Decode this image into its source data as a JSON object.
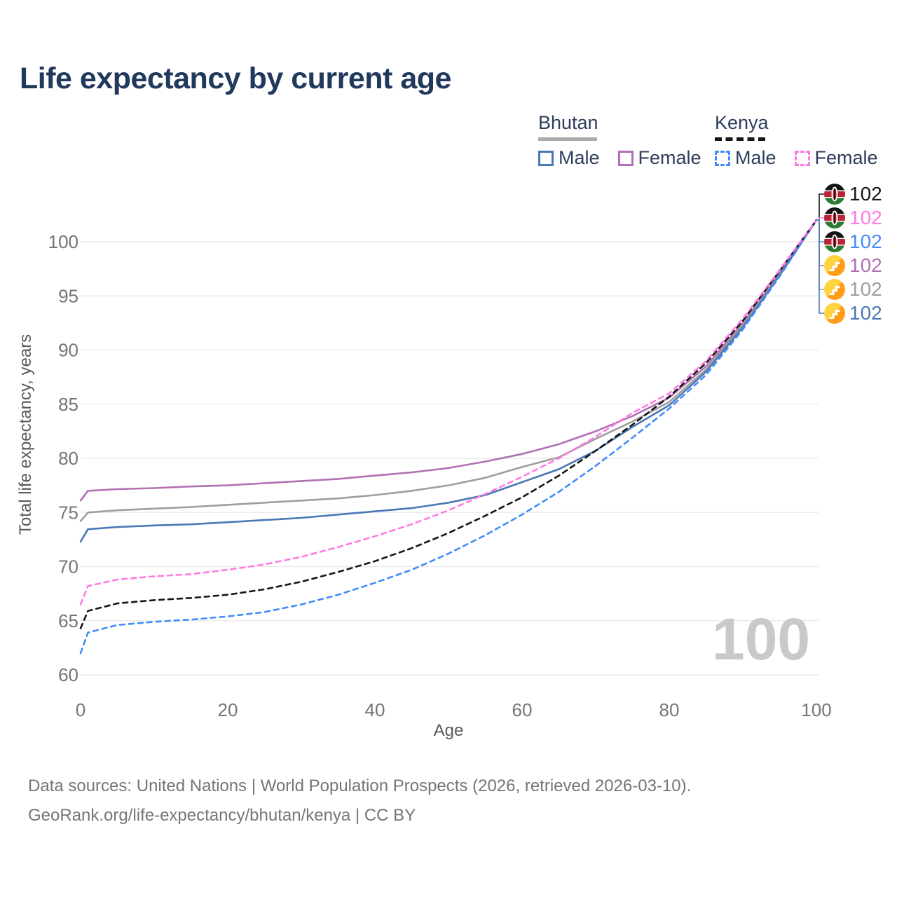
{
  "header": {
    "title": "Life expectancy by current age"
  },
  "legend": {
    "groups": [
      {
        "label": "Bhutan",
        "line_style": "solid",
        "underline_color": "#ababab",
        "items": [
          {
            "label": "Male",
            "series": "bhutan_male"
          },
          {
            "label": "Female",
            "series": "bhutan_female"
          }
        ]
      },
      {
        "label": "Kenya",
        "line_style": "dashed",
        "underline_color": "#161616",
        "items": [
          {
            "label": "Male",
            "series": "kenya_male"
          },
          {
            "label": "Female",
            "series": "kenya_female"
          }
        ]
      }
    ]
  },
  "chart_data": {
    "type": "line",
    "title": "Life expectancy by current age",
    "xlabel": "Age",
    "ylabel": "Total life expectancy, years",
    "xlim": [
      0,
      100
    ],
    "ylim": [
      60,
      103
    ],
    "xticks": [
      0,
      20,
      40,
      60,
      80,
      100
    ],
    "yticks": [
      60,
      65,
      70,
      75,
      80,
      85,
      90,
      95,
      100
    ],
    "grid": "horizontal-only",
    "legend_position": "top-right",
    "watermark": "100",
    "x": [
      0,
      1,
      5,
      10,
      15,
      20,
      25,
      30,
      35,
      40,
      45,
      50,
      55,
      60,
      65,
      70,
      75,
      80,
      85,
      90,
      95,
      100
    ],
    "series": [
      {
        "id": "bhutan_female",
        "name": "Bhutan Female",
        "color": "#b170b5",
        "dash": "solid",
        "values": [
          76.1,
          77.0,
          77.15,
          77.25,
          77.4,
          77.5,
          77.7,
          77.9,
          78.1,
          78.4,
          78.7,
          79.1,
          79.7,
          80.4,
          81.3,
          82.5,
          83.9,
          85.6,
          88.5,
          92.5,
          97.1,
          102
        ]
      },
      {
        "id": "bhutan_all",
        "name": "Bhutan",
        "color": "#9e9e9e",
        "dash": "solid",
        "values": [
          74.2,
          75.0,
          75.2,
          75.35,
          75.5,
          75.7,
          75.9,
          76.1,
          76.3,
          76.6,
          77.0,
          77.5,
          78.2,
          79.2,
          80.1,
          81.8,
          83.4,
          85.2,
          88.2,
          92.3,
          97.0,
          102
        ]
      },
      {
        "id": "bhutan_male",
        "name": "Bhutan Male",
        "color": "#4a78b5",
        "dash": "solid",
        "values": [
          72.3,
          73.45,
          73.65,
          73.8,
          73.9,
          74.1,
          74.3,
          74.5,
          74.8,
          75.1,
          75.4,
          75.9,
          76.6,
          77.8,
          79.0,
          80.7,
          82.9,
          84.9,
          88.0,
          92.1,
          96.9,
          102
        ]
      },
      {
        "id": "kenya_male",
        "name": "Kenya Male",
        "color": "#418cfb",
        "dash": "dashed",
        "values": [
          62.0,
          63.9,
          64.6,
          64.9,
          65.1,
          65.4,
          65.8,
          66.5,
          67.4,
          68.5,
          69.7,
          71.2,
          72.9,
          74.8,
          76.9,
          79.3,
          81.9,
          84.6,
          87.7,
          91.9,
          96.8,
          102
        ]
      },
      {
        "id": "kenya_all",
        "name": "Kenya",
        "color": "#161616",
        "dash": "dashed",
        "values": [
          64.3,
          65.9,
          66.6,
          66.9,
          67.1,
          67.4,
          67.9,
          68.6,
          69.5,
          70.5,
          71.7,
          73.1,
          74.7,
          76.4,
          78.4,
          80.7,
          83.1,
          85.7,
          88.8,
          92.7,
          97.3,
          102
        ]
      },
      {
        "id": "kenya_female",
        "name": "Kenya Female",
        "color": "#ff7ae3",
        "dash": "dashed",
        "values": [
          66.5,
          68.2,
          68.8,
          69.1,
          69.3,
          69.7,
          70.2,
          70.9,
          71.8,
          72.8,
          73.9,
          75.2,
          76.7,
          78.3,
          80.0,
          82.0,
          84.2,
          86.0,
          89.0,
          92.9,
          97.4,
          102
        ]
      }
    ],
    "end_labels": [
      {
        "series": "kenya_all",
        "flag": "kenya",
        "value": "102",
        "color": "#161616"
      },
      {
        "series": "kenya_female",
        "flag": "kenya",
        "value": "102",
        "color": "#ff7ae3"
      },
      {
        "series": "kenya_male",
        "flag": "kenya",
        "value": "102",
        "color": "#418cfb"
      },
      {
        "series": "bhutan_female",
        "flag": "bhutan",
        "value": "102",
        "color": "#b170b5"
      },
      {
        "series": "bhutan_all",
        "flag": "bhutan",
        "value": "102",
        "color": "#9e9e9e"
      },
      {
        "series": "bhutan_male",
        "flag": "bhutan",
        "value": "102",
        "color": "#4a78b5"
      }
    ]
  },
  "footer": {
    "line1": "Data sources: United Nations | World Population Prospects (2026, retrieved 2026-03-10).",
    "line2": "GeoRank.org/life-expectancy/bhutan/kenya | CC BY"
  }
}
